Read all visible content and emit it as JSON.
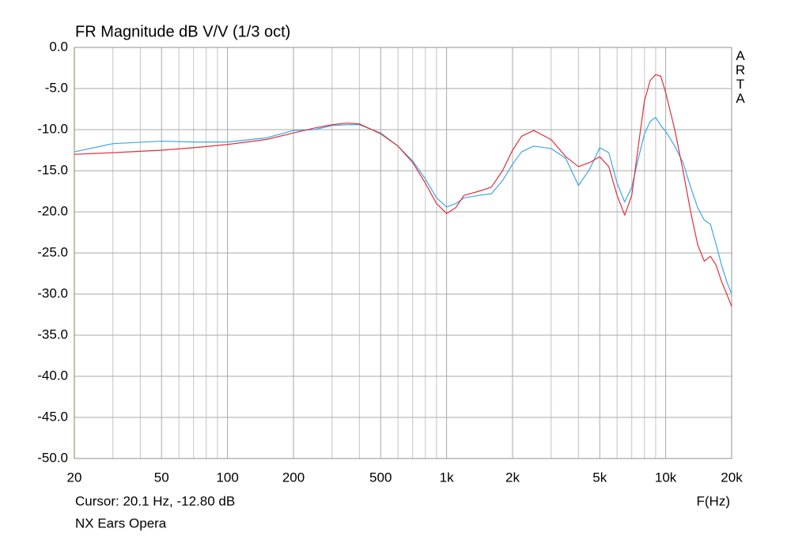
{
  "chart_data": {
    "type": "line",
    "title": "FR Magnitude dB V/V (1/3 oct)",
    "brand": "ARTA",
    "cursor": "Cursor: 20.1 Hz, -12.80 dB",
    "caption": "NX Ears Opera",
    "xlabel": "F(Hz)",
    "xscale": "log",
    "grid": true,
    "xlim": [
      20,
      20000
    ],
    "ylim": [
      -50,
      0
    ],
    "xticks": [
      20,
      50,
      100,
      200,
      500,
      {
        "value": 1000,
        "label": "1k"
      },
      {
        "value": 2000,
        "label": "2k"
      },
      {
        "value": 5000,
        "label": "5k"
      },
      {
        "value": 10000,
        "label": "10k"
      },
      {
        "value": 20000,
        "label": "20k"
      }
    ],
    "xminorticks": [
      30,
      40,
      60,
      70,
      80,
      90,
      300,
      400,
      600,
      700,
      800,
      900,
      3000,
      4000,
      6000,
      7000,
      8000,
      9000
    ],
    "yticks": [
      {
        "value": 0,
        "label": "0.0"
      },
      {
        "value": -5,
        "label": "-5.0"
      },
      {
        "value": -10,
        "label": "-10.0"
      },
      {
        "value": -15,
        "label": "-15.0"
      },
      {
        "value": -20,
        "label": "-20.0"
      },
      {
        "value": -25,
        "label": "-25.0"
      },
      {
        "value": -30,
        "label": "-30.0"
      },
      {
        "value": -35,
        "label": "-35.0"
      },
      {
        "value": -40,
        "label": "-40.0"
      },
      {
        "value": -45,
        "label": "-45.0"
      },
      {
        "value": -50,
        "label": "-50.0"
      }
    ],
    "x": [
      20,
      30,
      50,
      70,
      100,
      150,
      200,
      250,
      300,
      350,
      400,
      500,
      600,
      700,
      800,
      900,
      1000,
      1100,
      1200,
      1400,
      1600,
      1800,
      2000,
      2200,
      2500,
      3000,
      3500,
      4000,
      4500,
      5000,
      5500,
      6000,
      6500,
      7000,
      7500,
      8000,
      8500,
      9000,
      9500,
      10000,
      11000,
      12000,
      13000,
      14000,
      15000,
      16000,
      17000,
      18000,
      19000,
      20000
    ],
    "series": [
      {
        "color": "#3ea6e3",
        "values": [
          -12.7,
          -11.7,
          -11.4,
          -11.5,
          -11.5,
          -11.0,
          -10.1,
          -10.0,
          -9.5,
          -9.4,
          -9.4,
          -10.4,
          -12.0,
          -13.8,
          -16.0,
          -18.3,
          -19.4,
          -19.0,
          -18.3,
          -18.0,
          -17.8,
          -16.2,
          -14.2,
          -12.7,
          -12.0,
          -12.3,
          -13.5,
          -16.8,
          -14.8,
          -12.2,
          -12.8,
          -16.5,
          -18.8,
          -17.0,
          -13.5,
          -10.5,
          -9.0,
          -8.5,
          -9.5,
          -10.2,
          -12.0,
          -14.0,
          -17.0,
          -19.5,
          -21.0,
          -21.5,
          -24.0,
          -26.5,
          -28.5,
          -30.0
        ]
      },
      {
        "color": "#e0303a",
        "values": [
          -13.0,
          -12.8,
          -12.5,
          -12.2,
          -11.8,
          -11.2,
          -10.4,
          -9.8,
          -9.4,
          -9.2,
          -9.3,
          -10.5,
          -12.0,
          -14.0,
          -16.5,
          -19.0,
          -20.2,
          -19.5,
          -18.0,
          -17.5,
          -17.0,
          -15.0,
          -12.5,
          -10.8,
          -10.1,
          -11.2,
          -13.3,
          -14.5,
          -14.0,
          -13.3,
          -14.5,
          -18.0,
          -20.4,
          -18.0,
          -12.0,
          -6.5,
          -4.0,
          -3.3,
          -3.5,
          -5.5,
          -10.0,
          -15.0,
          -20.0,
          -24.0,
          -26.0,
          -25.4,
          -26.5,
          -28.5,
          -30.0,
          -31.5
        ]
      }
    ]
  }
}
